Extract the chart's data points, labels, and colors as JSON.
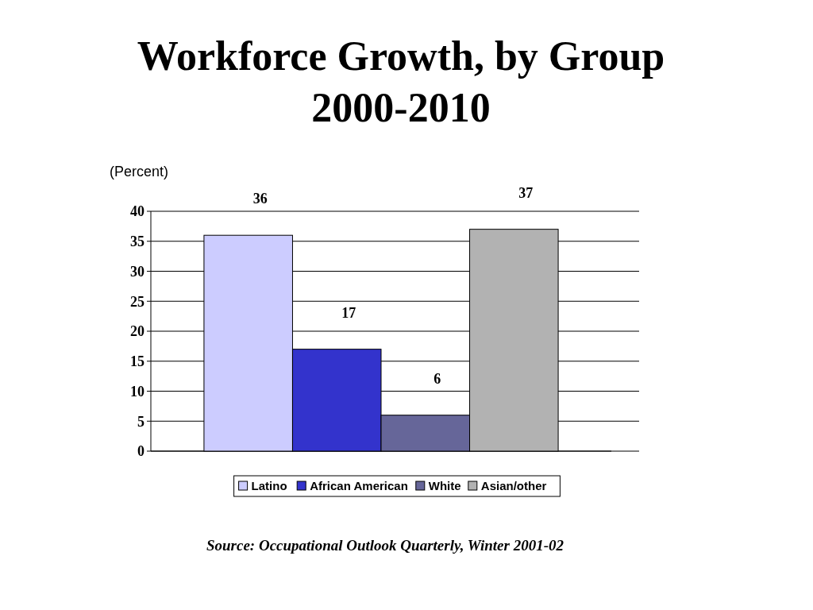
{
  "chart_data": {
    "type": "bar",
    "title": "Workforce Growth, by Group",
    "subtitle": "2000-2010",
    "ylabel": "(Percent)",
    "categories": [
      null
    ],
    "series": [
      {
        "name": "Latino",
        "color": "#ccccff",
        "values": [
          36
        ]
      },
      {
        "name": "African American",
        "color": "#3333cc",
        "values": [
          17
        ]
      },
      {
        "name": "White",
        "color": "#666699",
        "values": [
          6
        ]
      },
      {
        "name": "Asian/other",
        "color": "#b2b2b2",
        "values": [
          37
        ]
      }
    ],
    "ylim": [
      0,
      40
    ],
    "yticks": [
      0,
      5,
      10,
      15,
      20,
      25,
      30,
      35,
      40
    ],
    "grid": "y",
    "legend": "bottom",
    "data_labels": true,
    "annotations": [
      "Source: Occupational Outlook Quarterly, Winter 2001-02"
    ]
  }
}
